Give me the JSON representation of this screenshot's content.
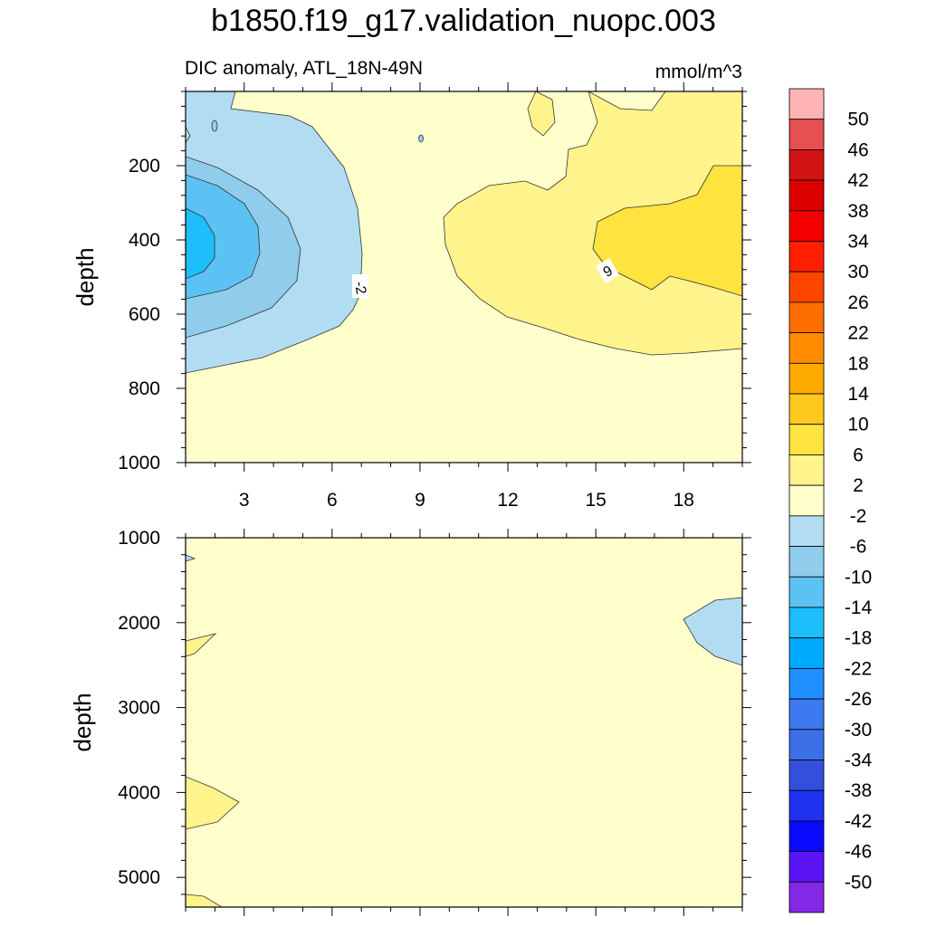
{
  "chart_data": {
    "type": "contour",
    "title": "b1850.f19_g17.validation_nuopc.003",
    "subtitle_left": "DIC anomaly, ATL_18N-49N",
    "subtitle_right": "mmol/m^3",
    "xlabel": "",
    "xlim": [
      1,
      20
    ],
    "x_ticks": [
      3,
      6,
      9,
      12,
      15,
      18
    ],
    "panels": [
      {
        "name": "upper",
        "ylabel": "depth",
        "ylim": [
          0,
          1000
        ],
        "y_ticks": [
          200,
          400,
          600,
          800,
          1000
        ],
        "regions": [
          {
            "level": "-2 to 2",
            "color": "#FFFFCC",
            "desc": "background"
          },
          {
            "level": "-6 to -2",
            "color": "#B2DCF1",
            "x_extent": [
              1,
              7.5
            ],
            "depth_extent": [
              0,
              760
            ]
          },
          {
            "level": "-10 to -6",
            "color": "#90CCEB",
            "x_extent": [
              1,
              5.5
            ],
            "depth_extent": [
              180,
              670
            ]
          },
          {
            "level": "-14 to -10",
            "color": "#5BC2F3",
            "x_extent": [
              1,
              4
            ],
            "depth_extent": [
              240,
              570
            ]
          },
          {
            "level": "-18 to -14",
            "color": "#1EBEFA",
            "x_extent": [
              1,
              2.5
            ],
            "depth_extent": [
              300,
              470
            ]
          },
          {
            "level": "2 to 6",
            "color": "#FFF38C",
            "x_extent": [
              10.4,
              20
            ],
            "depth_extent": [
              0,
              710
            ]
          },
          {
            "level": "6 to 10",
            "color": "#FFE33F",
            "x_extent": [
              14.5,
              20
            ],
            "depth_extent": [
              200,
              550
            ]
          }
        ],
        "contour_labels": [
          {
            "text": "-2",
            "x": 7.3,
            "depth": 520
          },
          {
            "text": "6",
            "x": 15.9,
            "depth": 480
          }
        ]
      },
      {
        "name": "lower",
        "ylabel": "depth",
        "ylim": [
          1000,
          5350
        ],
        "y_ticks": [
          1000,
          2000,
          3000,
          4000,
          5000
        ],
        "regions": [
          {
            "level": "-2 to 2",
            "color": "#FFFFCC",
            "desc": "background"
          },
          {
            "level": "-6 to -2",
            "color": "#B2DCF1",
            "x_extent": [
              17.2,
              20
            ],
            "depth_extent": [
              1700,
              2500
            ]
          },
          {
            "level": "2 to 6",
            "color": "#FFF38C",
            "x_extent": [
              1,
              2.2
            ],
            "depth_extent": [
              2150,
              2450
            ]
          },
          {
            "level": "2 to 6",
            "color": "#FFF38C",
            "x_extent": [
              1,
              2.9
            ],
            "depth_extent": [
              3850,
              4450
            ]
          }
        ]
      }
    ],
    "colorbar": {
      "labels": [
        "50",
        "46",
        "42",
        "38",
        "34",
        "30",
        "26",
        "22",
        "18",
        "14",
        "10",
        "6",
        "2",
        "-2",
        "-6",
        "-10",
        "-14",
        "-18",
        "-22",
        "-26",
        "-30",
        "-34",
        "-38",
        "-42",
        "-46",
        "-50"
      ],
      "colors": [
        "#FFB4B4",
        "#E65050",
        "#D21414",
        "#DC0000",
        "#F50000",
        "#FF1E00",
        "#FF4600",
        "#FF6E00",
        "#FF8C00",
        "#FFAA00",
        "#FFC81E",
        "#FFE33F",
        "#FFF38C",
        "#FFFFCC",
        "#B2DCF1",
        "#90CCEB",
        "#5BC2F3",
        "#1EBEFA",
        "#00AAFF",
        "#1E90FF",
        "#3C78F0",
        "#3C6EE6",
        "#3250DC",
        "#1E32F0",
        "#0A0AFF",
        "#5A14F5",
        "#8228E6"
      ]
    }
  }
}
